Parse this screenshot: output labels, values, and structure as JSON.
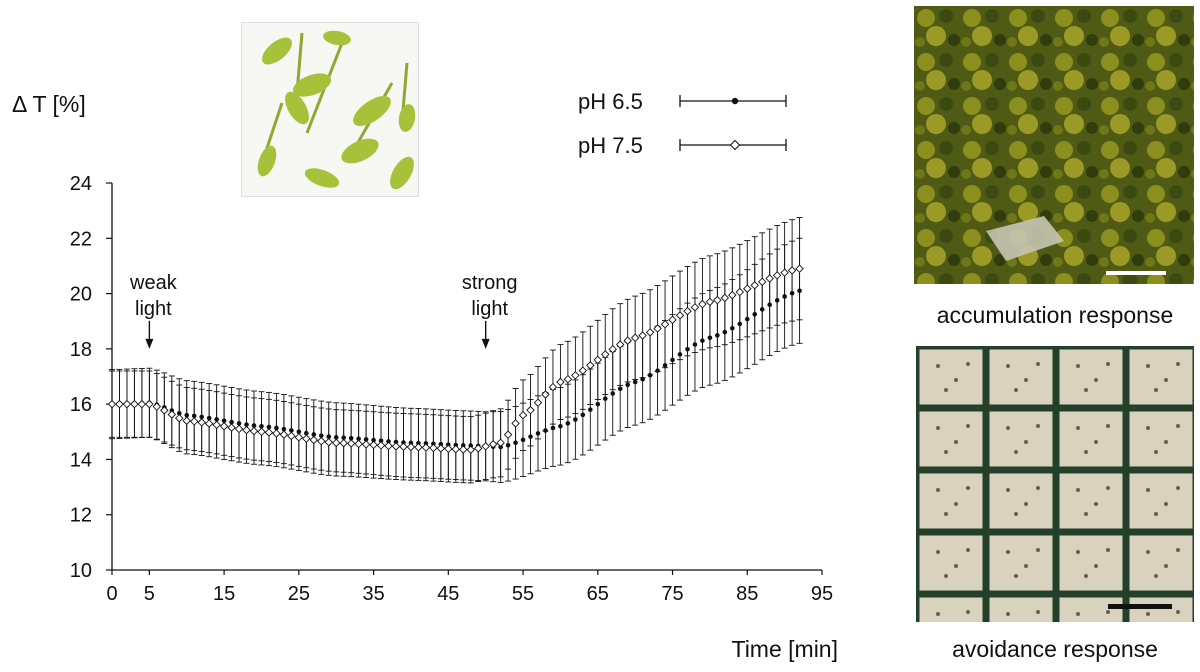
{
  "chart_data": {
    "type": "line",
    "ylabel": "Δ T [%]",
    "xlabel": "Time [min]",
    "xlim": [
      0,
      95
    ],
    "ylim": [
      10,
      24
    ],
    "x_ticks": [
      "0",
      "5",
      "15",
      "25",
      "35",
      "45",
      "55",
      "65",
      "75",
      "85",
      "95"
    ],
    "x_tick_values": [
      0,
      5,
      15,
      25,
      35,
      45,
      55,
      65,
      75,
      85,
      95
    ],
    "y_ticks": [
      "10",
      "12",
      "14",
      "16",
      "18",
      "20",
      "22",
      "24"
    ],
    "y_tick_values": [
      10,
      12,
      14,
      16,
      18,
      20,
      22,
      24
    ],
    "legend_placement": "top-right",
    "series": [
      {
        "name": "pH 6.5",
        "marker": "filled-circle",
        "keyframes": [
          [
            0,
            16.0
          ],
          [
            5,
            16.05
          ],
          [
            10,
            15.6
          ],
          [
            20,
            15.2
          ],
          [
            30,
            14.8
          ],
          [
            40,
            14.6
          ],
          [
            48,
            14.5
          ],
          [
            52,
            14.45
          ],
          [
            60,
            15.2
          ],
          [
            70,
            16.8
          ],
          [
            80,
            18.4
          ],
          [
            92,
            20.1
          ]
        ],
        "error": 1.25,
        "error_end": 1.9
      },
      {
        "name": "pH 7.5",
        "marker": "open-diamond",
        "keyframes": [
          [
            0,
            16.0
          ],
          [
            5,
            16.0
          ],
          [
            10,
            15.4
          ],
          [
            20,
            15.0
          ],
          [
            30,
            14.6
          ],
          [
            40,
            14.45
          ],
          [
            48,
            14.35
          ],
          [
            52,
            14.6
          ],
          [
            55,
            15.6
          ],
          [
            60,
            16.8
          ],
          [
            70,
            18.4
          ],
          [
            80,
            19.7
          ],
          [
            92,
            20.9
          ]
        ],
        "error": 1.2,
        "error_end": 1.85
      }
    ],
    "x_start": 0,
    "x_end": 92,
    "x_step": 1,
    "annotations": [
      {
        "lines": [
          "weak",
          "light"
        ],
        "x": 5,
        "arrow_to_y": 18.0
      },
      {
        "lines": [
          "strong",
          "light"
        ],
        "x": 50,
        "arrow_to_y": 18.0
      }
    ]
  },
  "images": {
    "seedlings": "seedlings-photo",
    "accumulation": "accumulation-micrograph",
    "avoidance": "avoidance-micrograph"
  },
  "captions": {
    "accumulation": "accumulation response",
    "avoidance": "avoidance response"
  }
}
